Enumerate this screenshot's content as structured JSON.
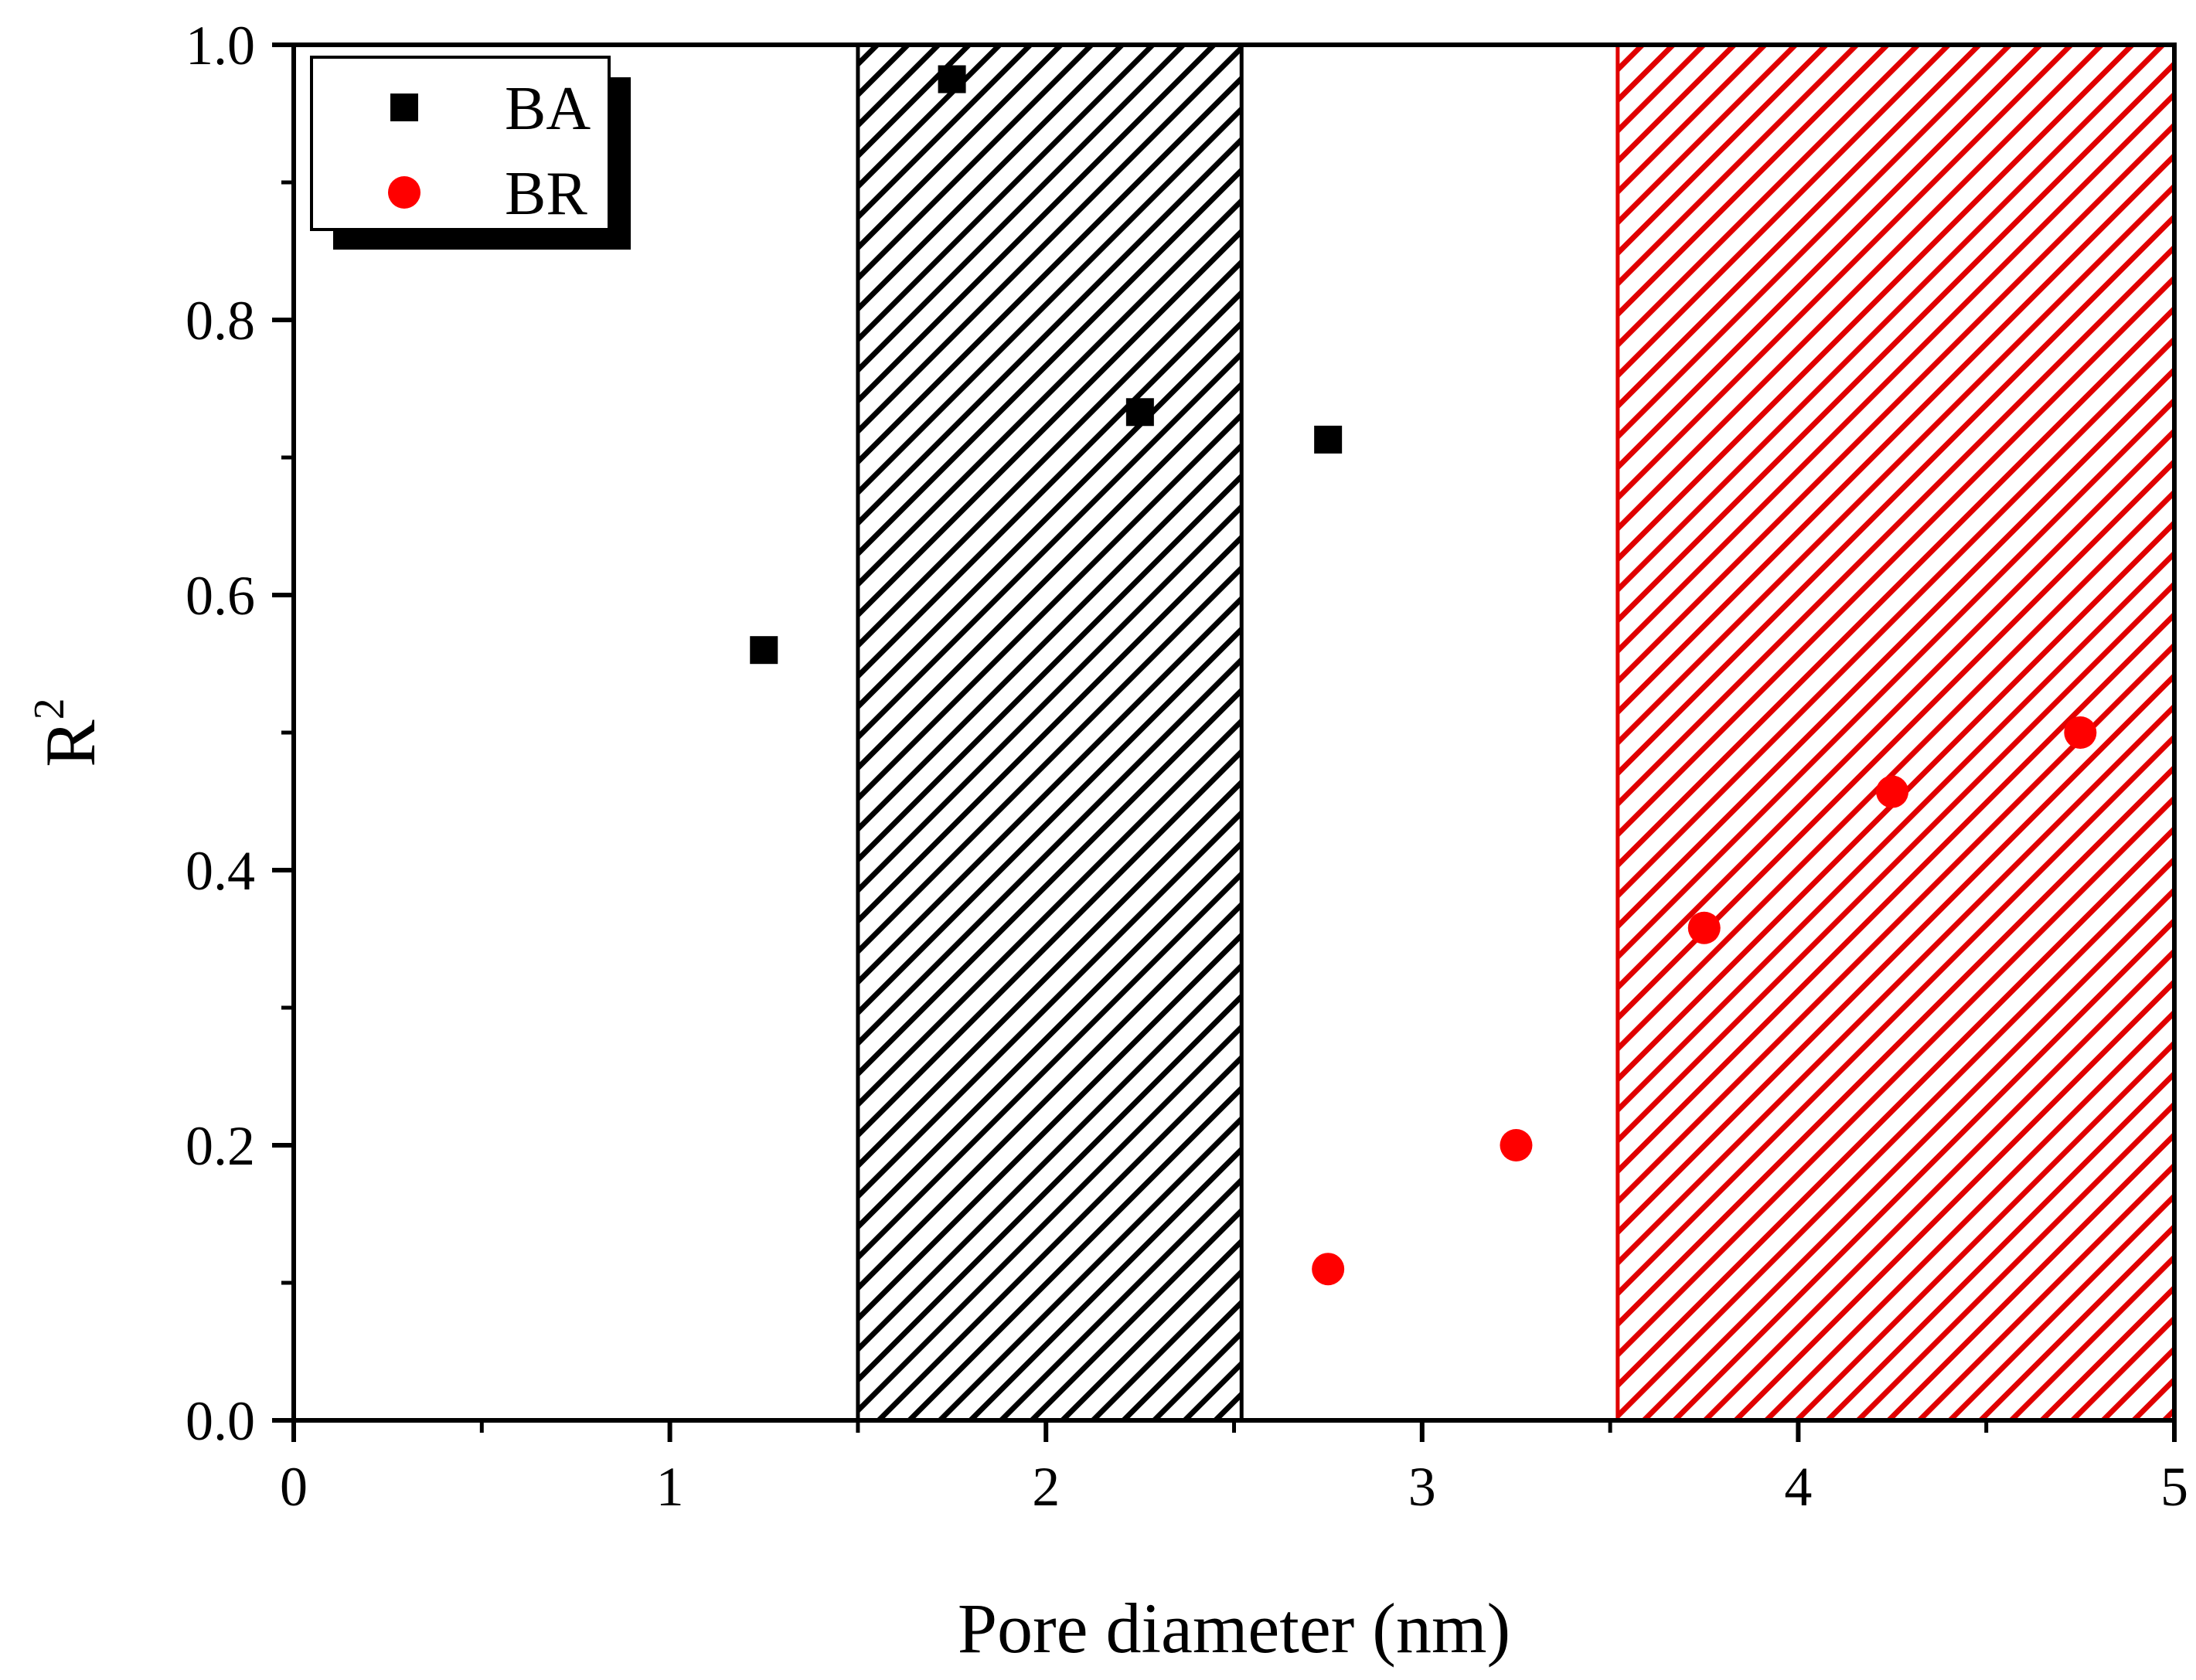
{
  "chart_data": {
    "type": "scatter",
    "title": "",
    "xlabel": "Pore diameter (nm)",
    "ylabel_base": "R",
    "ylabel_sup": "2",
    "xlim": [
      0,
      5
    ],
    "ylim": [
      0,
      1
    ],
    "x_ticks": [
      0,
      1,
      2,
      3,
      4,
      5
    ],
    "x_tick_labels": [
      "0",
      "1",
      "2",
      "3",
      "4",
      "5"
    ],
    "y_ticks": [
      0.0,
      0.2,
      0.4,
      0.6,
      0.8,
      1.0
    ],
    "y_tick_labels": [
      "0.0",
      "0.2",
      "0.4",
      "0.6",
      "0.8",
      "1.0"
    ],
    "grid": false,
    "legend_position": "top-left",
    "shaded_regions": [
      {
        "name": "black-hatch-region",
        "x_start": 1.5,
        "x_end": 2.52,
        "color": "#000000"
      },
      {
        "name": "red-hatch-region",
        "x_start": 3.52,
        "x_end": 5.0,
        "color": "#e00000"
      }
    ],
    "series": [
      {
        "name": "BA",
        "marker": "square",
        "color": "#000000",
        "points": [
          {
            "x": 1.25,
            "y": 0.56
          },
          {
            "x": 1.75,
            "y": 0.975
          },
          {
            "x": 2.25,
            "y": 0.733
          },
          {
            "x": 2.75,
            "y": 0.713
          }
        ]
      },
      {
        "name": "BR",
        "marker": "circle",
        "color": "#ff0000",
        "points": [
          {
            "x": 2.75,
            "y": 0.11
          },
          {
            "x": 3.25,
            "y": 0.2
          },
          {
            "x": 3.75,
            "y": 0.358
          },
          {
            "x": 4.25,
            "y": 0.457
          },
          {
            "x": 4.75,
            "y": 0.5
          }
        ]
      }
    ]
  }
}
